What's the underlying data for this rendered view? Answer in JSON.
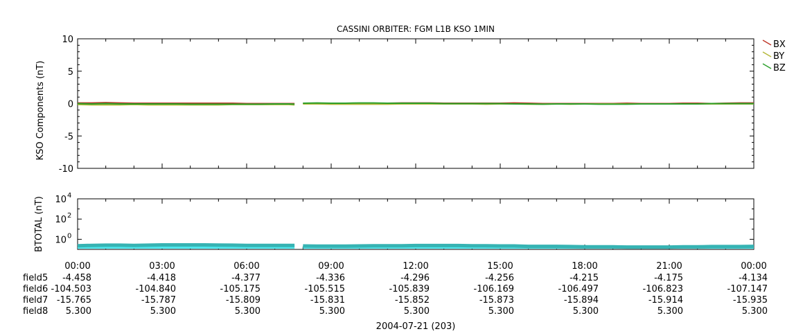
{
  "chart_data": [
    {
      "type": "line",
      "title": "CASSINI ORBITER: FGM L1B KSO 1MIN",
      "ylabel": "KSO Components (nT)",
      "ylim": [
        -10,
        10
      ],
      "yticks": [
        "10",
        "5",
        "0",
        "-5",
        "-10"
      ],
      "legend_position": "top-right",
      "x_hours": [
        0,
        0.5,
        1,
        1.5,
        2,
        2.5,
        3,
        3.5,
        4,
        4.5,
        5,
        5.5,
        6,
        6.5,
        7,
        7.5,
        7.7,
        8.0,
        8.5,
        9,
        9.5,
        10,
        10.5,
        11,
        11.5,
        12,
        12.5,
        13,
        13.5,
        14,
        14.5,
        15,
        15.5,
        16,
        16.5,
        17,
        17.5,
        18,
        18.5,
        19,
        19.5,
        20,
        20.5,
        21,
        21.5,
        22,
        22.5,
        23,
        23.5,
        24
      ],
      "series": [
        {
          "name": "BX",
          "color": "#c0392b",
          "values": [
            0.1,
            0.1,
            0.15,
            0.1,
            0.05,
            0.05,
            0.05,
            0.05,
            0.05,
            0.05,
            0.05,
            0.05,
            0.0,
            0.0,
            0.0,
            0.0,
            0.0,
            0.05,
            0.05,
            0.05,
            0.0,
            0.0,
            0.05,
            0.05,
            0.1,
            0.1,
            0.1,
            0.05,
            0.05,
            0.05,
            0.05,
            0.05,
            0.1,
            0.05,
            0.0,
            0.0,
            0.0,
            0.0,
            0.0,
            0.0,
            0.05,
            0.0,
            0.0,
            0.0,
            0.05,
            0.05,
            0.0,
            0.05,
            0.1,
            0.1
          ]
        },
        {
          "name": "BY",
          "color": "#b5b83a",
          "values": [
            -0.15,
            -0.2,
            -0.2,
            -0.2,
            -0.15,
            -0.2,
            -0.2,
            -0.2,
            -0.2,
            -0.2,
            -0.2,
            -0.15,
            -0.15,
            -0.15,
            -0.15,
            -0.15,
            -0.2,
            -0.05,
            -0.05,
            -0.1,
            -0.1,
            -0.1,
            -0.1,
            -0.1,
            -0.05,
            -0.05,
            -0.05,
            -0.05,
            -0.05,
            -0.05,
            -0.1,
            -0.05,
            -0.05,
            -0.1,
            -0.1,
            -0.05,
            -0.1,
            -0.05,
            -0.05,
            -0.05,
            -0.05,
            -0.05,
            -0.05,
            -0.05,
            -0.05,
            -0.05,
            -0.05,
            -0.05,
            -0.05,
            -0.05
          ]
        },
        {
          "name": "BZ",
          "color": "#2ca02c",
          "values": [
            0.0,
            -0.05,
            0.0,
            -0.05,
            -0.05,
            -0.05,
            -0.05,
            -0.05,
            -0.1,
            -0.1,
            -0.1,
            -0.1,
            -0.1,
            -0.1,
            -0.05,
            -0.05,
            -0.1,
            0.05,
            0.1,
            0.05,
            0.05,
            0.1,
            0.1,
            0.05,
            0.05,
            0.05,
            0.05,
            0.0,
            0.0,
            0.0,
            0.0,
            0.0,
            -0.05,
            -0.05,
            -0.1,
            -0.05,
            -0.05,
            -0.05,
            -0.1,
            -0.1,
            -0.1,
            -0.05,
            -0.05,
            -0.05,
            -0.05,
            -0.05,
            0.0,
            0.0,
            0.0,
            0.0
          ]
        }
      ]
    },
    {
      "type": "line",
      "ylabel": "BTOTAL (nT)",
      "yscale": "log",
      "ylim": [
        0.1,
        10000
      ],
      "yticks": [
        {
          "base": "10",
          "exp": "4"
        },
        {
          "base": "10",
          "exp": "2"
        },
        {
          "base": "10",
          "exp": "0"
        }
      ],
      "x_hours": [
        0,
        0.5,
        1,
        1.5,
        2,
        2.5,
        3,
        3.5,
        4,
        4.5,
        5,
        5.5,
        6,
        6.5,
        7,
        7.5,
        7.7,
        8.0,
        8.5,
        9,
        9.5,
        10,
        10.5,
        11,
        11.5,
        12,
        12.5,
        13,
        13.5,
        14,
        14.5,
        15,
        15.5,
        16,
        16.5,
        17,
        17.5,
        18,
        18.5,
        19,
        19.5,
        20,
        20.5,
        21,
        21.5,
        22,
        22.5,
        23,
        23.5,
        24
      ],
      "series": [
        {
          "name": "",
          "color": "#36b3b3",
          "fill": "#4ee8ee",
          "values": [
            0.23,
            0.25,
            0.26,
            0.26,
            0.25,
            0.26,
            0.28,
            0.28,
            0.28,
            0.28,
            0.27,
            0.26,
            0.25,
            0.25,
            0.25,
            0.25,
            0.25,
            0.22,
            0.21,
            0.21,
            0.21,
            0.22,
            0.23,
            0.23,
            0.23,
            0.24,
            0.24,
            0.24,
            0.24,
            0.23,
            0.23,
            0.22,
            0.22,
            0.2,
            0.2,
            0.2,
            0.19,
            0.18,
            0.18,
            0.18,
            0.17,
            0.17,
            0.17,
            0.17,
            0.18,
            0.18,
            0.19,
            0.19,
            0.19,
            0.2
          ]
        }
      ]
    }
  ],
  "x_axis": {
    "tick_labels": [
      "00:00",
      "03:00",
      "06:00",
      "09:00",
      "12:00",
      "15:00",
      "18:00",
      "21:00",
      "00:00"
    ],
    "xlabel": "2004-07-21 (203)"
  },
  "ephemeris": [
    {
      "label": "field5",
      "values": [
        "-4.458",
        "-4.418",
        "-4.377",
        "-4.336",
        "-4.296",
        "-4.256",
        "-4.215",
        "-4.175",
        "-4.134"
      ]
    },
    {
      "label": "field6",
      "values": [
        "-104.503",
        "-104.840",
        "-105.175",
        "-105.515",
        "-105.839",
        "-106.169",
        "-106.497",
        "-106.823",
        "-107.147"
      ]
    },
    {
      "label": "field7",
      "values": [
        "-15.765",
        "-15.787",
        "-15.809",
        "-15.831",
        "-15.852",
        "-15.873",
        "-15.894",
        "-15.914",
        "-15.935"
      ]
    },
    {
      "label": "field8",
      "values": [
        "5.300",
        "5.300",
        "5.300",
        "5.300",
        "5.300",
        "5.300",
        "5.300",
        "5.300",
        "5.300"
      ]
    }
  ]
}
